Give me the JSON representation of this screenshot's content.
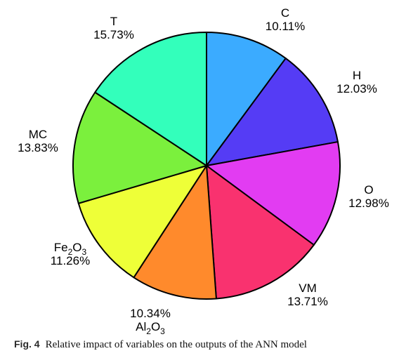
{
  "chart_data": {
    "type": "pie",
    "start_angle_deg": 90,
    "direction": "clockwise",
    "slices": [
      {
        "label": "C",
        "label_sub": null,
        "value": 10.11,
        "value_text": "10.11%",
        "color": "#3BABFF"
      },
      {
        "label": "H",
        "label_sub": null,
        "value": 12.03,
        "value_text": "12.03%",
        "color": "#553CF5"
      },
      {
        "label": "O",
        "label_sub": null,
        "value": 12.98,
        "value_text": "12.98%",
        "color": "#E23CF2"
      },
      {
        "label": "VM",
        "label_sub": null,
        "value": 13.71,
        "value_text": "13.71%",
        "color": "#F9326F"
      },
      {
        "label": "Al2O3",
        "label_sub": [
          "Al",
          "2",
          "O",
          "3"
        ],
        "value": 10.34,
        "value_text": "10.34%",
        "color": "#FF8A2C",
        "value_first": true
      },
      {
        "label": "Fe2O3",
        "label_sub": [
          "Fe",
          "2",
          "O",
          "3"
        ],
        "value": 11.26,
        "value_text": "11.26%",
        "color": "#EEFF38"
      },
      {
        "label": "MC",
        "label_sub": null,
        "value": 13.83,
        "value_text": "13.83%",
        "color": "#7BF03D"
      },
      {
        "label": "T",
        "label_sub": null,
        "value": 15.73,
        "value_text": "15.73%",
        "color": "#33FFBB"
      }
    ]
  },
  "caption": {
    "label": "Fig. 4",
    "text": "Relative impact of variables on the outputs of the ANN model"
  }
}
